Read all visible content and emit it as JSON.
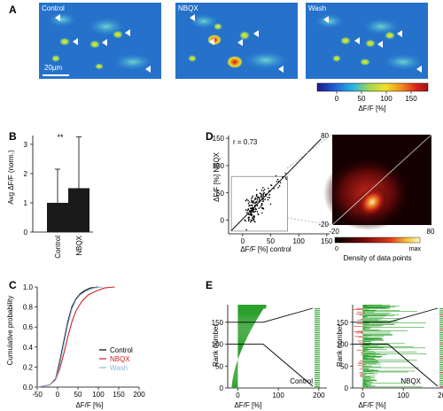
{
  "panel_labels": [
    "A",
    "B",
    "C",
    "D",
    "E"
  ],
  "panel_a": {
    "conditions": [
      "Control",
      "NBQX",
      "Wash"
    ],
    "scale_bar": "20µm",
    "colorbar": {
      "ticks": [
        "0",
        "50",
        "100",
        "150"
      ],
      "label": "ΔF/F [%]",
      "colors": [
        "#1b1a8a",
        "#1f5cd6",
        "#27b4e6",
        "#a7d94a",
        "#f2e02a",
        "#f28c1c",
        "#d9201b",
        "#a0141b"
      ]
    }
  },
  "chart_data": [
    {
      "id": "B",
      "type": "bar",
      "categories": [
        "Control",
        "NBQX"
      ],
      "values": [
        1.0,
        1.5
      ],
      "error_upper": [
        1.15,
        1.75
      ],
      "ylabel": "Avg ΔF/F (norm.)",
      "yticks": [
        "0",
        "1",
        "2",
        "3"
      ],
      "ylim": [
        0,
        3.3
      ],
      "significance": "**"
    },
    {
      "id": "C",
      "type": "line",
      "ylabel": "Cumulative probability",
      "xlabel": "ΔF/F [%]",
      "xticks": [
        "-50",
        "0",
        "50",
        "100",
        "150",
        "200"
      ],
      "yticks": [
        "0.0",
        "0.2",
        "0.4",
        "0.6",
        "0.8",
        "1.0"
      ],
      "xlim": [
        -50,
        200
      ],
      "ylim": [
        0,
        1
      ],
      "series": [
        {
          "name": "Control",
          "color": "#000000",
          "x": [
            -50,
            -20,
            -5,
            5,
            15,
            25,
            35,
            45,
            55,
            65,
            80,
            100
          ],
          "y": [
            0,
            0.02,
            0.08,
            0.25,
            0.45,
            0.65,
            0.8,
            0.88,
            0.93,
            0.96,
            0.99,
            1.0
          ]
        },
        {
          "name": "NBQX",
          "color": "#d62020",
          "x": [
            -50,
            -20,
            -5,
            5,
            15,
            25,
            35,
            45,
            60,
            75,
            95,
            115,
            140
          ],
          "y": [
            0,
            0.02,
            0.07,
            0.18,
            0.33,
            0.5,
            0.65,
            0.76,
            0.86,
            0.92,
            0.96,
            0.99,
            1.0
          ]
        },
        {
          "name": "Wash",
          "color": "#8fb7d9",
          "x": [
            -50,
            -20,
            -5,
            5,
            15,
            25,
            35,
            45,
            55,
            70,
            90,
            110
          ],
          "y": [
            0,
            0.02,
            0.07,
            0.22,
            0.42,
            0.62,
            0.78,
            0.87,
            0.92,
            0.96,
            0.99,
            1.0
          ]
        }
      ]
    },
    {
      "id": "D",
      "type": "scatter",
      "annotation": "r = 0.73",
      "xlabel": "ΔF/F [%]  control",
      "ylabel": "ΔF/F [%] NBQX",
      "xticks": [
        "0",
        "50",
        "100",
        "150"
      ],
      "yticks": [
        "0",
        "50",
        "100",
        "150"
      ],
      "xlim": [
        -25,
        155
      ],
      "ylim": [
        -25,
        155
      ],
      "regression": {
        "slope": 1.05,
        "intercept": 2
      }
    },
    {
      "id": "D-density",
      "type": "heatmap",
      "xticks": [
        "-20",
        "80"
      ],
      "yticks": [
        "80",
        "-20"
      ],
      "colorbar_labels": [
        "0",
        "max"
      ],
      "caption": "Density of data points"
    },
    {
      "id": "E",
      "type": "bar",
      "ylabel": "Rank number",
      "xlabel": "ΔF/F [%]",
      "xticks": [
        "0",
        "100",
        "200"
      ],
      "yticks": [
        "0",
        "50",
        "100",
        "150"
      ],
      "panels": [
        "Control",
        "NBQX"
      ]
    }
  ]
}
